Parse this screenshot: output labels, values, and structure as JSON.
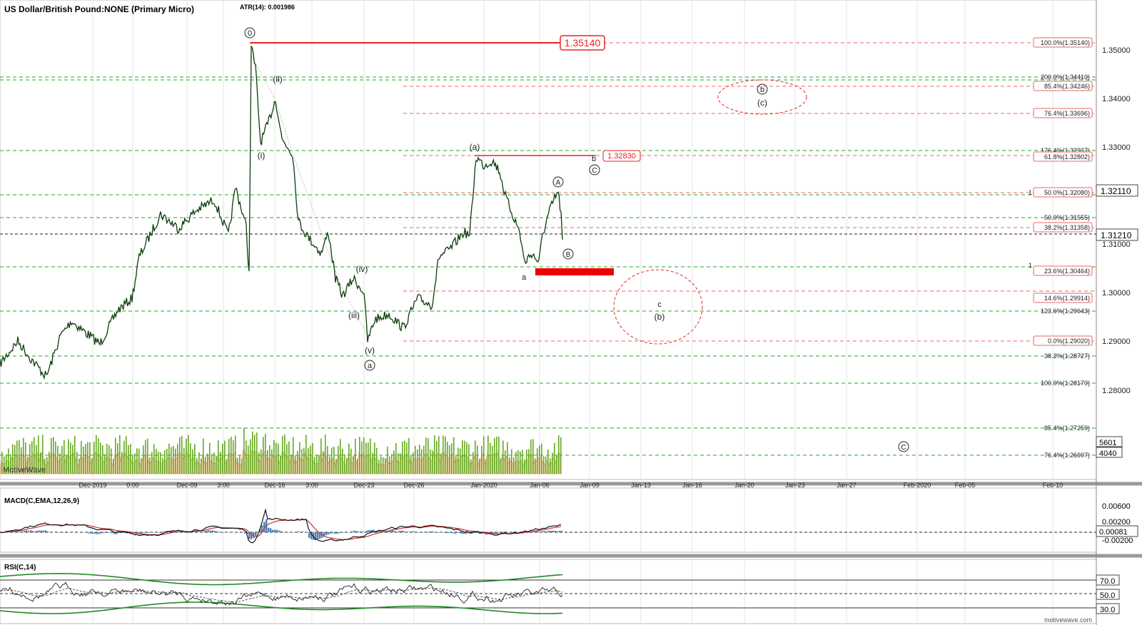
{
  "title": "US Dollar/British Pound:NONE (Primary Micro)",
  "atr": "ATR(14): 0.001986",
  "watermark": "MotiveWave",
  "footer": "motivewave.com",
  "colors": {
    "candle": "#0b3d0b",
    "green_line": "#22aa22",
    "red": "#ee2222",
    "pink": "#ee6666",
    "volume": "#66aa22",
    "volume_fill": "#f3c9a0",
    "volume_line": "#e88a3a",
    "macd_line": "#111111",
    "macd_signal": "#cc3333",
    "macd_hist": "#4a7fb5",
    "rsi_band": "#228822"
  },
  "price_axis": {
    "labels": [
      "1.35000",
      "1.34000",
      "1.33000",
      "1.31000",
      "1.30000",
      "1.29000",
      "1.28000"
    ],
    "current_box": "1.32110",
    "last_box": "1.31210"
  },
  "time_axis": [
    "Dec-2019",
    "0:00",
    "Dec-09",
    "3:00",
    "Dec-16",
    "3:00",
    "Dec-23",
    "Dec-26",
    "Jan-2020",
    "Jan-06",
    "Jan-09",
    "Jan-13",
    "Jan-16",
    "Jan-20",
    "Jan-23",
    "Jan-27",
    "Feb-2020",
    "Feb-05",
    "Feb-10"
  ],
  "top_level_box": "1.35140",
  "mid_level_box": "1.32830",
  "fib_labels": [
    "100.0%(1.35140)",
    "200.0%(1.34410)",
    "85.4%(1.34246)",
    "76.4%(1.33696)",
    "176.4%(1.32937)",
    "61.8%(1.32802)",
    "50.0%(1.32080)",
    "50.0%(1.31555)",
    "38.2%(1.31358)",
    "23.6%(1.30464)",
    "14.6%(1.29914)",
    "123.6%(1.29643)",
    "0.0%(1.29020)",
    "38.2%(1.28727)",
    "100.0%(1.28170)",
    "85.4%(1.27259)",
    "76.4%(1.26697)"
  ],
  "fib_partial": [
    "1",
    "1"
  ],
  "wave_labels": {
    "w0": "0",
    "wi": "(i)",
    "wii": "(ii)",
    "wiii": "(iii)",
    "wiv": "(iv)",
    "wv": "(v)",
    "wa_circ": "a",
    "wa_paren": "(a)",
    "wb_small": "b",
    "wC_circ": "C",
    "wA_circ": "A",
    "wB_circ": "B",
    "wa_small": "a",
    "wb_circ_top": "b",
    "wc_paren_top": "(c)",
    "wc_small": "c",
    "wb_paren": "(b)",
    "wC_far": "C"
  },
  "volume_boxes": [
    "5601",
    "4040"
  ],
  "macd": {
    "title": "MACD(C,EMA,12,26,9)",
    "labels": [
      "0.00600",
      "0.00200",
      "-0.00200"
    ],
    "box": "0.00081"
  },
  "rsi": {
    "title": "RSI(C,14)",
    "labels": [
      "70.0",
      "50.0",
      "30.0"
    ]
  }
}
